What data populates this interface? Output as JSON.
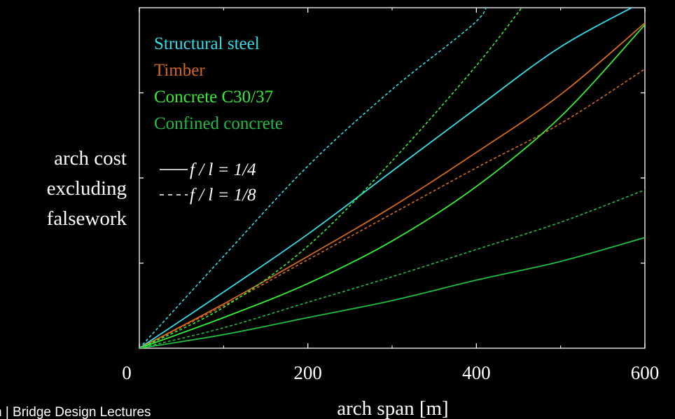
{
  "chart_data": {
    "type": "line",
    "xlabel": "arch span [m]",
    "ylabel": [
      "arch cost",
      "excluding",
      "falsework"
    ],
    "xlim": [
      0,
      600
    ],
    "ylim": [
      0,
      1
    ],
    "x_ticks": [
      0,
      200,
      400,
      600
    ],
    "y_tick_labels_shown": false,
    "grid": false,
    "legend": {
      "placement": "top-left",
      "entries": [
        {
          "label": "Structural steel",
          "color": "#33dde8"
        },
        {
          "label": "Timber",
          "color": "#d2691e"
        },
        {
          "label": "Concrete C30/37",
          "color": "#33ee33"
        },
        {
          "label": "Confined concrete",
          "color": "#22bb44"
        }
      ],
      "style_entries": [
        {
          "label": "f / l = 1/4",
          "dash": "solid"
        },
        {
          "label": "f / l = 1/8",
          "dash": "dashed"
        }
      ]
    },
    "series": [
      {
        "material": "Structural steel",
        "ratio": "1/4",
        "dash": "solid",
        "color": "#33dde8",
        "x": [
          0,
          100,
          200,
          300,
          400,
          500,
          600
        ],
        "y": [
          0,
          0.165,
          0.335,
          0.52,
          0.705,
          0.885,
          1.02
        ]
      },
      {
        "material": "Structural steel",
        "ratio": "1/8",
        "dash": "dashed",
        "color": "#33dde8",
        "x": [
          0,
          100,
          200,
          300,
          400,
          410
        ],
        "y": [
          0,
          0.27,
          0.535,
          0.76,
          0.96,
          1.02
        ]
      },
      {
        "material": "Timber",
        "ratio": "1/4",
        "dash": "solid",
        "color": "#d2691e",
        "x": [
          0,
          100,
          200,
          300,
          400,
          500,
          600
        ],
        "y": [
          0,
          0.13,
          0.27,
          0.415,
          0.575,
          0.745,
          0.955
        ]
      },
      {
        "material": "Timber",
        "ratio": "1/8",
        "dash": "dashed",
        "color": "#d2691e",
        "x": [
          0,
          100,
          200,
          300,
          400,
          500,
          600
        ],
        "y": [
          0,
          0.125,
          0.26,
          0.395,
          0.53,
          0.66,
          0.82
        ]
      },
      {
        "material": "Concrete C30/37",
        "ratio": "1/4",
        "dash": "solid",
        "color": "#33ee33",
        "x": [
          0,
          100,
          200,
          300,
          400,
          500,
          600
        ],
        "y": [
          0,
          0.09,
          0.19,
          0.315,
          0.475,
          0.68,
          0.95
        ]
      },
      {
        "material": "Concrete C30/37",
        "ratio": "1/8",
        "dash": "dashed",
        "color": "#33ee33",
        "x": [
          0,
          100,
          200,
          300,
          400,
          460
        ],
        "y": [
          0,
          0.12,
          0.3,
          0.55,
          0.83,
          1.02
        ]
      },
      {
        "material": "Confined concrete",
        "ratio": "1/4",
        "dash": "solid",
        "color": "#22bb44",
        "x": [
          0,
          100,
          200,
          300,
          400,
          500,
          600
        ],
        "y": [
          0,
          0.04,
          0.09,
          0.14,
          0.2,
          0.255,
          0.325
        ]
      },
      {
        "material": "Confined concrete",
        "ratio": "1/8",
        "dash": "dashed",
        "color": "#22bb44",
        "x": [
          0,
          100,
          200,
          300,
          400,
          500,
          600
        ],
        "y": [
          0,
          0.06,
          0.135,
          0.21,
          0.29,
          0.37,
          0.465
        ]
      }
    ]
  },
  "footer": {
    "text": "n  |  Bridge Design Lectures"
  }
}
